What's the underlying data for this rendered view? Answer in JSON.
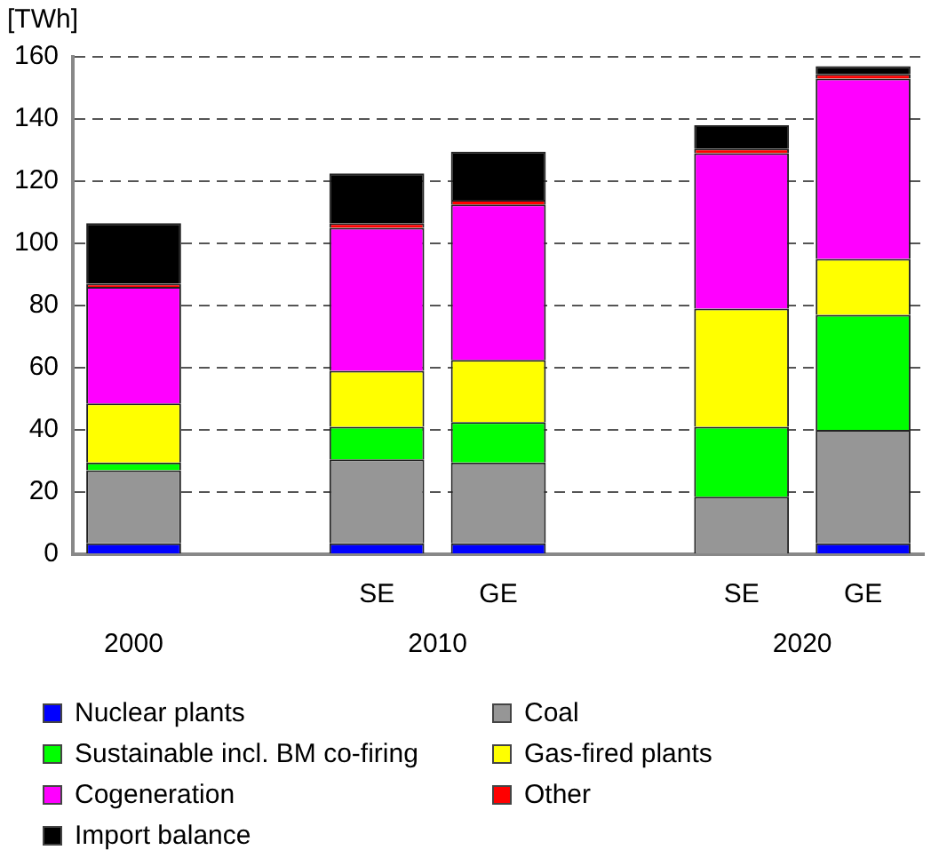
{
  "chart_data": {
    "type": "bar",
    "stacked": true,
    "ylabel": "[TWh]",
    "categories": [
      null,
      null,
      "SE",
      "GE",
      null,
      "SE",
      "GE"
    ],
    "series": [
      {
        "name": "Nuclear plants",
        "color": "#0000ff",
        "values": [
          3.5,
          null,
          3.5,
          3.5,
          null,
          0,
          3.5
        ]
      },
      {
        "name": "Coal",
        "color": "#969696",
        "values": [
          23.5,
          null,
          27,
          26,
          null,
          18.5,
          36.5
        ]
      },
      {
        "name": "Sustainable incl. BM co-firing",
        "color": "#00ff00",
        "values": [
          2.5,
          null,
          10.5,
          13,
          null,
          22.5,
          37
        ]
      },
      {
        "name": "Gas-fired plants",
        "color": "#ffff00",
        "values": [
          19,
          null,
          18,
          20,
          null,
          38,
          18
        ]
      },
      {
        "name": "Cogeneration",
        "color": "#ff00ff",
        "values": [
          37.5,
          null,
          46,
          50,
          null,
          50,
          58
        ]
      },
      {
        "name": "Other",
        "color": "#ff0000",
        "values": [
          1,
          null,
          1.5,
          1.5,
          null,
          1.5,
          1.5
        ]
      },
      {
        "name": "Import balance",
        "color": "#000000",
        "values": [
          19.5,
          null,
          16,
          15.5,
          null,
          7.5,
          2.5
        ]
      }
    ],
    "annotations": [
      "2000",
      "2010",
      "2020"
    ],
    "ylim": [
      0,
      160
    ],
    "yticks": [
      0,
      20,
      40,
      60,
      80,
      100,
      120,
      140,
      160
    ],
    "grid": "y",
    "legend": "bottom"
  }
}
